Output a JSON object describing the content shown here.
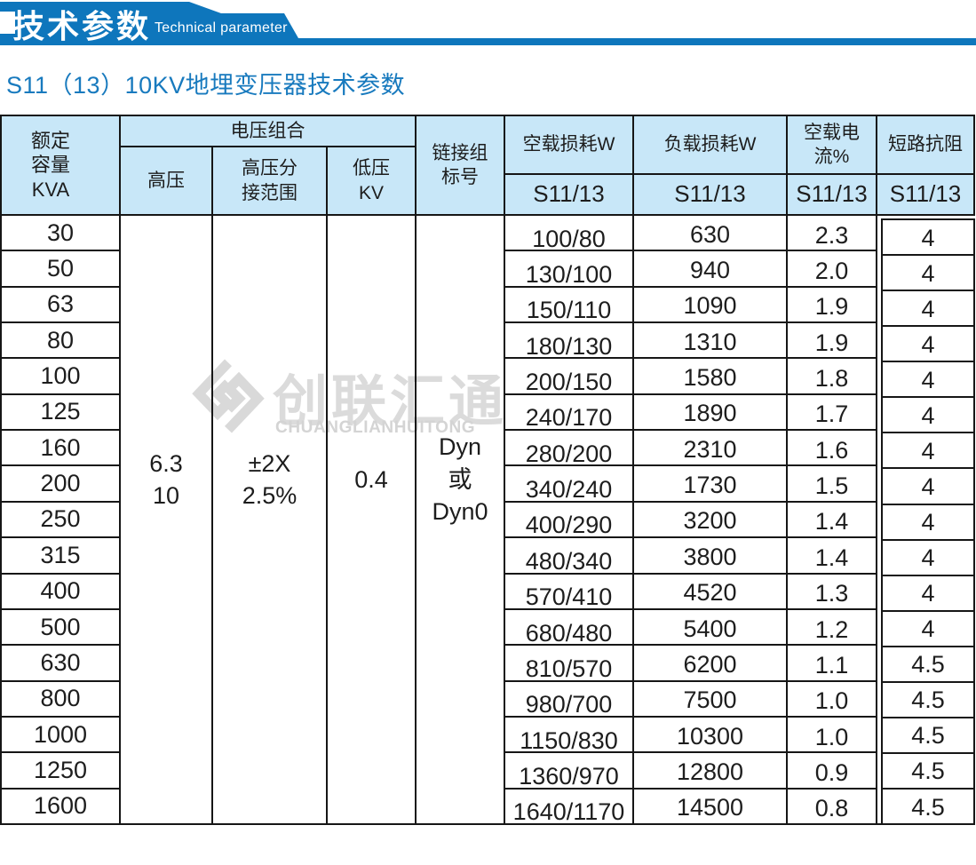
{
  "banner": {
    "title_zh": "技术参数",
    "title_en": "Technical parameter"
  },
  "page_title": "S11（13）10KV地埋变压器技术参数",
  "watermark": {
    "brand_zh": "创联汇通",
    "brand_en": "CHUANGLIANHUITONG",
    "logo": "diamond-knot-icon"
  },
  "colors": {
    "banner_blue": "#0e76bc",
    "title_blue": "#187abe",
    "header_bg": "#c8e7f8",
    "border": "#161616",
    "watermark_gray": "#dbdbdb"
  },
  "table": {
    "headers": {
      "capacity": "额定\n容量\nKVA",
      "voltage_group": "电压组合",
      "hv": "高压",
      "hv_tap": "高压分\n接范围",
      "lv": "低压\nKV",
      "connection": "链接组\n标号",
      "no_load_loss": "空载损耗W",
      "load_loss": "负载损耗W",
      "no_load_current": "空载电流%",
      "impedance": "短路抗阻",
      "model": "S11/13"
    },
    "merged": {
      "hv_value": "6.3\n10",
      "hv_tap_value": "±2X\n2.5%",
      "lv_value": "0.4",
      "connection_value": "Dyn\n或\nDyn0"
    },
    "rows": [
      {
        "kva": "30",
        "no_load_loss": "100/80",
        "load_loss": "630",
        "no_load_current": "2.3",
        "impedance": "4"
      },
      {
        "kva": "50",
        "no_load_loss": "130/100",
        "load_loss": "940",
        "no_load_current": "2.0",
        "impedance": "4"
      },
      {
        "kva": "63",
        "no_load_loss": "150/110",
        "load_loss": "1090",
        "no_load_current": "1.9",
        "impedance": "4"
      },
      {
        "kva": "80",
        "no_load_loss": "180/130",
        "load_loss": "1310",
        "no_load_current": "1.9",
        "impedance": "4"
      },
      {
        "kva": "100",
        "no_load_loss": "200/150",
        "load_loss": "1580",
        "no_load_current": "1.8",
        "impedance": "4"
      },
      {
        "kva": "125",
        "no_load_loss": "240/170",
        "load_loss": "1890",
        "no_load_current": "1.7",
        "impedance": "4"
      },
      {
        "kva": "160",
        "no_load_loss": "280/200",
        "load_loss": "2310",
        "no_load_current": "1.6",
        "impedance": "4"
      },
      {
        "kva": "200",
        "no_load_loss": "340/240",
        "load_loss": "1730",
        "no_load_current": "1.5",
        "impedance": "4"
      },
      {
        "kva": "250",
        "no_load_loss": "400/290",
        "load_loss": "3200",
        "no_load_current": "1.4",
        "impedance": "4"
      },
      {
        "kva": "315",
        "no_load_loss": "480/340",
        "load_loss": "3800",
        "no_load_current": "1.4",
        "impedance": "4"
      },
      {
        "kva": "400",
        "no_load_loss": "570/410",
        "load_loss": "4520",
        "no_load_current": "1.3",
        "impedance": "4"
      },
      {
        "kva": "500",
        "no_load_loss": "680/480",
        "load_loss": "5400",
        "no_load_current": "1.2",
        "impedance": "4"
      },
      {
        "kva": "630",
        "no_load_loss": "810/570",
        "load_loss": "6200",
        "no_load_current": "1.1",
        "impedance": "4.5"
      },
      {
        "kva": "800",
        "no_load_loss": "980/700",
        "load_loss": "7500",
        "no_load_current": "1.0",
        "impedance": "4.5"
      },
      {
        "kva": "1000",
        "no_load_loss": "1150/830",
        "load_loss": "10300",
        "no_load_current": "1.0",
        "impedance": "4.5"
      },
      {
        "kva": "1250",
        "no_load_loss": "1360/970",
        "load_loss": "12800",
        "no_load_current": "0.9",
        "impedance": "4.5"
      },
      {
        "kva": "1600",
        "no_load_loss": "1640/1170",
        "load_loss": "14500",
        "no_load_current": "0.8",
        "impedance": "4.5"
      }
    ]
  }
}
